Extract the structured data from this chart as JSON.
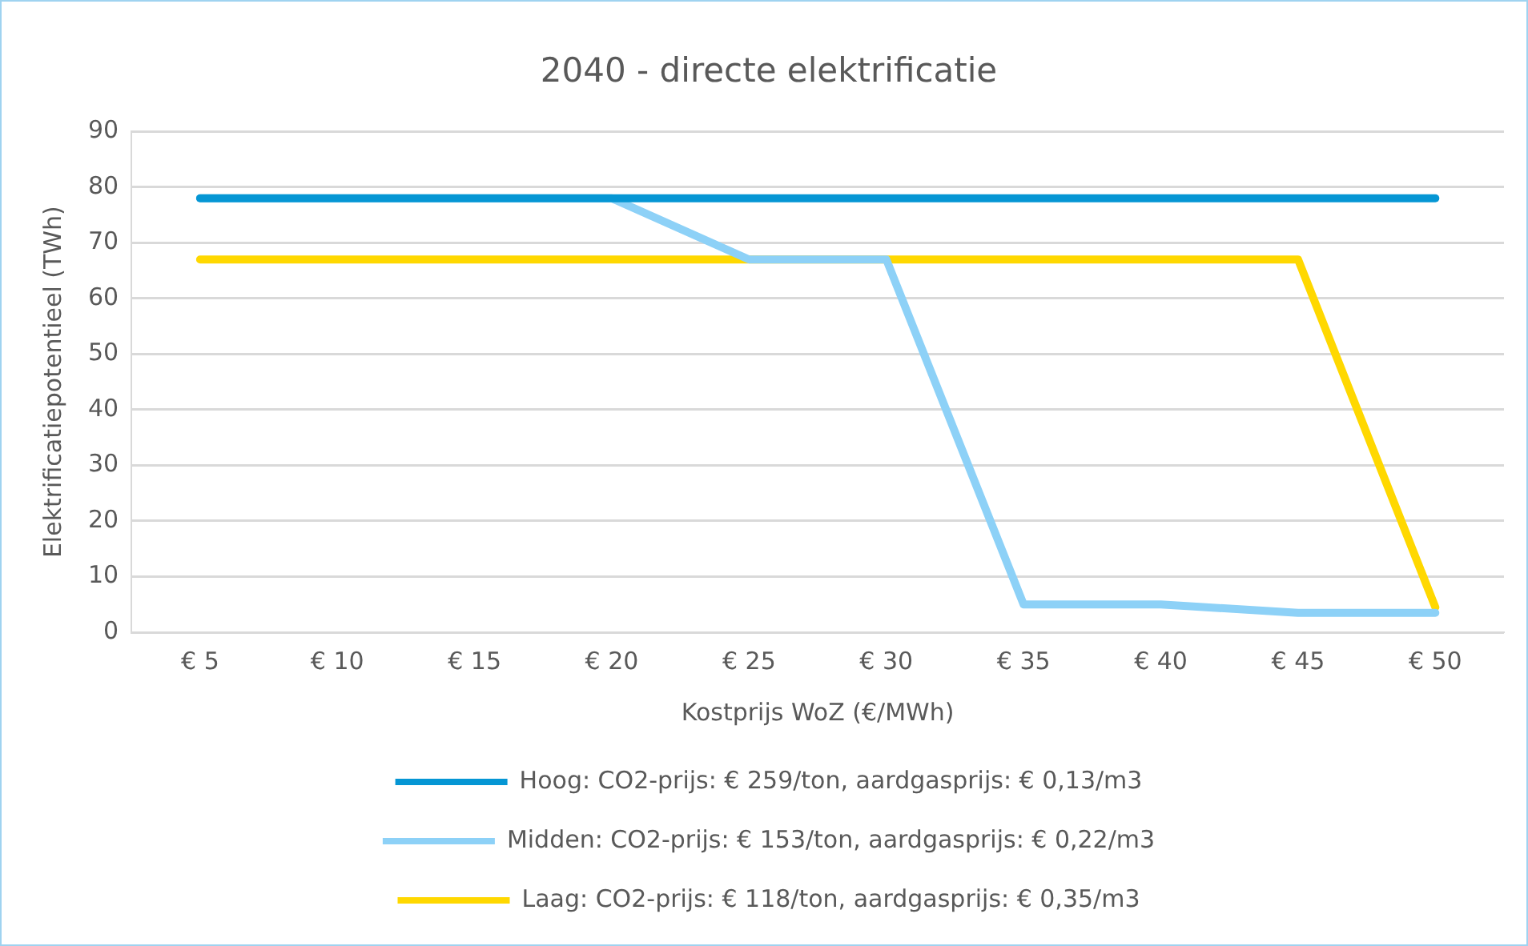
{
  "chart_data": {
    "type": "line",
    "title": "2040 - directe elektrificatie",
    "xlabel": "Kostprijs WoZ (€/MWh)",
    "ylabel": "Elektrificatiepotentieel (TWh)",
    "categories": [
      "€ 5",
      "€ 10",
      "€ 15",
      "€ 20",
      "€ 25",
      "€ 30",
      "€ 35",
      "€ 40",
      "€ 45",
      "€ 50"
    ],
    "series": [
      {
        "name": "Hoog: CO2-prijs: € 259/ton, aardgasprijs: € 0,13/m3",
        "color": "#0596d4",
        "values": [
          78,
          78,
          78,
          78,
          78,
          78,
          78,
          78,
          78,
          78
        ]
      },
      {
        "name": "Midden: CO2-prijs: € 153/ton, aardgasprijs: € 0,22/m3",
        "color": "#8dd1f7",
        "values": [
          78,
          78,
          78,
          78,
          67,
          67,
          5,
          5,
          3.5,
          3.5
        ]
      },
      {
        "name": "Laag: CO2-prijs: € 118/ton, aardgasprijs: € 0,35/m3",
        "color": "#ffd800",
        "values": [
          67,
          67,
          67,
          67,
          67,
          67,
          67,
          67,
          67,
          4.5
        ]
      }
    ],
    "ylim": [
      0,
      90
    ],
    "yticks": [
      0,
      10,
      20,
      30,
      40,
      50,
      60,
      70,
      80,
      90
    ],
    "grid": "y",
    "legend": "bottom",
    "marker": "none",
    "line_style": "solid"
  }
}
